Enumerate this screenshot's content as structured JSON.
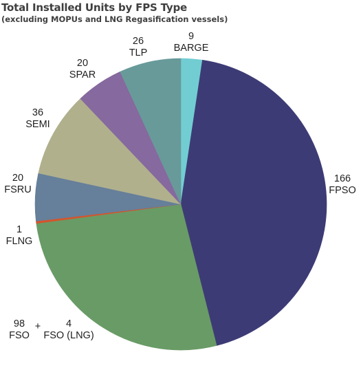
{
  "header": {
    "title": "Total Installed Units by FPS Type",
    "subtitle": "(excluding MOPUs and LNG Regasification vessels)"
  },
  "chart_data": {
    "type": "pie",
    "title": "Total Installed Units by FPS Type",
    "subtitle": "(excluding MOPUs and LNG Regasification vessels)",
    "start": "12 o'clock",
    "direction": "clockwise",
    "slices": [
      {
        "label": "BARGE",
        "value": 9,
        "color": "#72cdd2"
      },
      {
        "label": "FPSO",
        "value": 166,
        "color": "#3d3b75"
      },
      {
        "label": "FSO",
        "value": 98,
        "color": "#699b66"
      },
      {
        "label": "FSO (LNG)",
        "value": 4,
        "color": "#699b66"
      },
      {
        "label": "FLNG",
        "value": 1,
        "color": "#d4552c"
      },
      {
        "label": "FSRU",
        "value": 20,
        "color": "#667f9a"
      },
      {
        "label": "SEMI",
        "value": 36,
        "color": "#b0b08d"
      },
      {
        "label": "SPAR",
        "value": 20,
        "color": "#86699e"
      },
      {
        "label": "TLP",
        "value": 26,
        "color": "#689a9a"
      }
    ],
    "annotations": [
      "+"
    ]
  }
}
